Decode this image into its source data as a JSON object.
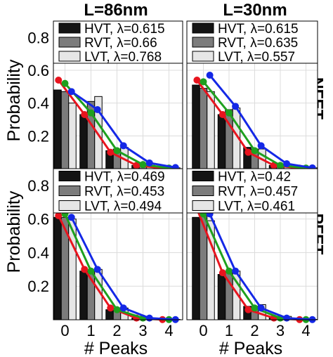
{
  "figure": {
    "column_titles": [
      "L=86nm",
      "L=30nm"
    ],
    "row_labels": [
      "NFET",
      "PFET"
    ],
    "ylabel": "Probability",
    "xlabel": "# Peaks"
  },
  "colors": {
    "HVT": {
      "bar": "#141414",
      "line": "#e8141e"
    },
    "RVT": {
      "bar": "#7c7c7c",
      "line": "#1ea01e"
    },
    "LVT": {
      "bar": "#e6e6e6",
      "line": "#1428e6"
    }
  },
  "chart_data": [
    {
      "type": "bar",
      "title": "L=86nm",
      "row": "NFET",
      "categories": [
        "0",
        "1",
        "2",
        "3",
        "4"
      ],
      "xlabel": "# Peaks",
      "ylabel": "Probability",
      "ylim": [
        0,
        0.9
      ],
      "yticks": [
        "0.2",
        "0.4",
        "0.6",
        "0.8"
      ],
      "legend_entries": [
        "HVT, λ=0.615",
        "RVT, λ=0.66",
        "LVT, λ=0.768"
      ],
      "legend_placement": "top",
      "series": [
        {
          "name": "HVT",
          "bar_values": [
            0.48,
            0.33,
            0.11,
            0.02,
            0.005
          ],
          "fit_x": [
            -0.25,
            0.75,
            1.75,
            2.75,
            3.75
          ],
          "fit_values": [
            0.54,
            0.33,
            0.1,
            0.02,
            0.003
          ]
        },
        {
          "name": "RVT",
          "bar_values": [
            0.47,
            0.41,
            0.12,
            0.02,
            0.005
          ],
          "fit_x": [
            0,
            1,
            2,
            3,
            4
          ],
          "fit_values": [
            0.52,
            0.34,
            0.11,
            0.025,
            0.004
          ]
        },
        {
          "name": "LVT",
          "bar_values": [
            0.4,
            0.44,
            0.13,
            0.03,
            0.005
          ],
          "fit_x": [
            0.25,
            1.25,
            2.25,
            3.25,
            4.25
          ],
          "fit_values": [
            0.47,
            0.36,
            0.14,
            0.035,
            0.007
          ]
        }
      ]
    },
    {
      "type": "bar",
      "title": "L=30nm",
      "row": "NFET",
      "categories": [
        "0",
        "1",
        "2",
        "3",
        "4"
      ],
      "xlabel": "# Peaks",
      "ylabel": "Probability",
      "ylim": [
        0,
        0.9
      ],
      "yticks": [
        "0.2",
        "0.4",
        "0.6",
        "0.8"
      ],
      "legend_entries": [
        "HVT, λ=0.615",
        "RVT, λ=0.635",
        "LVT, λ=0.557"
      ],
      "legend_placement": "top",
      "series": [
        {
          "name": "HVT",
          "bar_values": [
            0.51,
            0.33,
            0.13,
            0.02,
            0.005
          ],
          "fit_x": [
            -0.25,
            0.75,
            1.75,
            2.75,
            3.75
          ],
          "fit_values": [
            0.54,
            0.33,
            0.1,
            0.02,
            0.003
          ]
        },
        {
          "name": "RVT",
          "bar_values": [
            0.49,
            0.36,
            0.12,
            0.02,
            0.005
          ],
          "fit_x": [
            0,
            1,
            2,
            3,
            4
          ],
          "fit_values": [
            0.53,
            0.34,
            0.11,
            0.02,
            0.004
          ]
        },
        {
          "name": "LVT",
          "bar_values": [
            0.47,
            0.37,
            0.12,
            0.03,
            0.005
          ],
          "fit_x": [
            0.25,
            1.25,
            2.25,
            3.25,
            4.25
          ],
          "fit_values": [
            0.57,
            0.38,
            0.14,
            0.03,
            0.005
          ]
        }
      ]
    },
    {
      "type": "bar",
      "title": "",
      "row": "PFET",
      "categories": [
        "0",
        "1",
        "2",
        "3",
        "4"
      ],
      "xlabel": "# Peaks",
      "ylabel": "Probability",
      "ylim": [
        0,
        0.9
      ],
      "yticks": [
        "0.2",
        "0.4",
        "0.6",
        "0.8"
      ],
      "legend_entries": [
        "HVT, λ=0.469",
        "RVT, λ=0.453",
        "LVT, λ=0.494"
      ],
      "legend_placement": "top",
      "series": [
        {
          "name": "HVT",
          "bar_values": [
            0.61,
            0.29,
            0.06,
            0.01,
            0.002
          ],
          "fit_x": [
            -0.25,
            0.75,
            1.75,
            2.75,
            3.75
          ],
          "fit_values": [
            0.62,
            0.3,
            0.07,
            0.01,
            0.001
          ]
        },
        {
          "name": "RVT",
          "bar_values": [
            0.61,
            0.29,
            0.07,
            0.01,
            0.002
          ],
          "fit_x": [
            0,
            1,
            2,
            3,
            4
          ],
          "fit_values": [
            0.63,
            0.29,
            0.06,
            0.01,
            0.001
          ]
        },
        {
          "name": "LVT",
          "bar_values": [
            0.6,
            0.3,
            0.07,
            0.01,
            0.002
          ],
          "fit_x": [
            0.25,
            1.25,
            2.25,
            3.25,
            4.25
          ],
          "fit_values": [
            0.61,
            0.3,
            0.07,
            0.01,
            0.001
          ]
        }
      ]
    },
    {
      "type": "bar",
      "title": "",
      "row": "PFET",
      "categories": [
        "0",
        "1",
        "2",
        "3",
        "4"
      ],
      "xlabel": "# Peaks",
      "ylabel": "Probability",
      "ylim": [
        0,
        0.9
      ],
      "yticks": [
        "0.2",
        "0.4",
        "0.6",
        "0.8"
      ],
      "legend_entries": [
        "HVT, λ=0.42",
        "RVT, λ=0.457",
        "LVT, λ=0.461"
      ],
      "legend_placement": "top",
      "series": [
        {
          "name": "HVT",
          "bar_values": [
            0.61,
            0.27,
            0.08,
            0.02,
            0.002
          ],
          "fit_x": [
            -0.25,
            0.75,
            1.75,
            2.75,
            3.75
          ],
          "fit_values": [
            0.66,
            0.28,
            0.06,
            0.01,
            0.001
          ]
        },
        {
          "name": "RVT",
          "bar_values": [
            0.62,
            0.28,
            0.08,
            0.02,
            0.002
          ],
          "fit_x": [
            0,
            1,
            2,
            3,
            4
          ],
          "fit_values": [
            0.63,
            0.29,
            0.07,
            0.01,
            0.001
          ]
        },
        {
          "name": "LVT",
          "bar_values": [
            0.59,
            0.29,
            0.09,
            0.02,
            0.002
          ],
          "fit_x": [
            0.25,
            1.25,
            2.25,
            3.25,
            4.25
          ],
          "fit_values": [
            0.63,
            0.29,
            0.07,
            0.01,
            0.001
          ]
        }
      ]
    }
  ]
}
